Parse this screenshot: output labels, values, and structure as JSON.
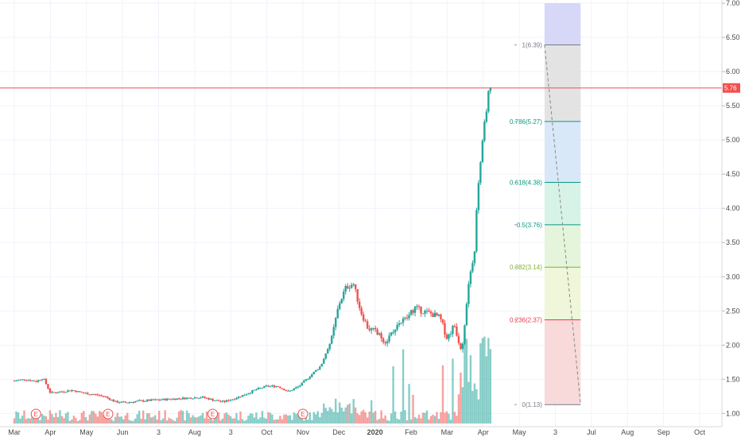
{
  "chart_data": {
    "type": "candlestick",
    "y_axis": {
      "ylim": [
        0.9,
        7.0
      ],
      "ticks": [
        "1.00",
        "1.50",
        "2.00",
        "2.50",
        "3.00",
        "3.50",
        "4.00",
        "4.50",
        "5.00",
        "5.50",
        "6.00",
        "6.50",
        "7.00"
      ],
      "position": "right"
    },
    "x_axis": {
      "ticks": [
        {
          "label": "Mar",
          "t": 0.0
        },
        {
          "label": "Apr",
          "t": 1.0
        },
        {
          "label": "May",
          "t": 2.0
        },
        {
          "label": "Jun",
          "t": 3.0
        },
        {
          "label": "3",
          "t": 4.0
        },
        {
          "label": "Aug",
          "t": 5.0
        },
        {
          "label": "3",
          "t": 6.0
        },
        {
          "label": "Oct",
          "t": 7.0
        },
        {
          "label": "Nov",
          "t": 8.0
        },
        {
          "label": "Dec",
          "t": 9.0
        },
        {
          "label": "2020",
          "t": 10.0
        },
        {
          "label": "Feb",
          "t": 11.0
        },
        {
          "label": "Mar",
          "t": 12.0
        },
        {
          "label": "Apr",
          "t": 13.0
        },
        {
          "label": "May",
          "t": 14.0
        },
        {
          "label": "3",
          "t": 15.0
        },
        {
          "label": "Jul",
          "t": 16.0
        },
        {
          "label": "Aug",
          "t": 17.0
        },
        {
          "label": "Sep",
          "t": 18.0
        },
        {
          "label": "Oct",
          "t": 19.0
        }
      ],
      "xlim": [
        0.0,
        20.5
      ]
    },
    "current_price": {
      "value": 5.76,
      "label": "5.76",
      "color": "#f0504f"
    },
    "colors": {
      "up": "#26a69a",
      "down": "#ef5350",
      "grid": "#f0f3fa"
    },
    "grid": true,
    "price_series": [
      {
        "t": 0.0,
        "v": 1.48
      },
      {
        "t": 0.3,
        "v": 1.5
      },
      {
        "t": 0.6,
        "v": 1.47
      },
      {
        "t": 0.8,
        "v": 1.52
      },
      {
        "t": 1.0,
        "v": 1.3
      },
      {
        "t": 1.3,
        "v": 1.32
      },
      {
        "t": 1.6,
        "v": 1.34
      },
      {
        "t": 1.9,
        "v": 1.3
      },
      {
        "t": 2.2,
        "v": 1.28
      },
      {
        "t": 2.5,
        "v": 1.25
      },
      {
        "t": 2.8,
        "v": 1.17
      },
      {
        "t": 3.1,
        "v": 1.16
      },
      {
        "t": 3.4,
        "v": 1.18
      },
      {
        "t": 3.7,
        "v": 1.19
      },
      {
        "t": 4.0,
        "v": 1.2
      },
      {
        "t": 4.3,
        "v": 1.21
      },
      {
        "t": 4.6,
        "v": 1.22
      },
      {
        "t": 4.9,
        "v": 1.23
      },
      {
        "t": 5.2,
        "v": 1.24
      },
      {
        "t": 5.5,
        "v": 1.2
      },
      {
        "t": 5.8,
        "v": 1.17
      },
      {
        "t": 6.1,
        "v": 1.22
      },
      {
        "t": 6.4,
        "v": 1.28
      },
      {
        "t": 6.7,
        "v": 1.35
      },
      {
        "t": 7.0,
        "v": 1.4
      },
      {
        "t": 7.3,
        "v": 1.4
      },
      {
        "t": 7.6,
        "v": 1.32
      },
      {
        "t": 7.9,
        "v": 1.4
      },
      {
        "t": 8.2,
        "v": 1.55
      },
      {
        "t": 8.5,
        "v": 1.7
      },
      {
        "t": 8.8,
        "v": 2.1
      },
      {
        "t": 9.0,
        "v": 2.6
      },
      {
        "t": 9.2,
        "v": 2.85
      },
      {
        "t": 9.4,
        "v": 2.9
      },
      {
        "t": 9.6,
        "v": 2.5
      },
      {
        "t": 9.8,
        "v": 2.25
      },
      {
        "t": 10.0,
        "v": 2.2
      },
      {
        "t": 10.3,
        "v": 2.05
      },
      {
        "t": 10.6,
        "v": 2.3
      },
      {
        "t": 10.9,
        "v": 2.4
      },
      {
        "t": 11.1,
        "v": 2.55
      },
      {
        "t": 11.3,
        "v": 2.5
      },
      {
        "t": 11.6,
        "v": 2.45
      },
      {
        "t": 11.8,
        "v": 2.4
      },
      {
        "t": 12.0,
        "v": 2.1
      },
      {
        "t": 12.2,
        "v": 2.3
      },
      {
        "t": 12.4,
        "v": 1.9
      },
      {
        "t": 12.6,
        "v": 2.9
      },
      {
        "t": 12.75,
        "v": 3.3
      },
      {
        "t": 12.85,
        "v": 4.3
      },
      {
        "t": 12.95,
        "v": 4.8
      },
      {
        "t": 13.05,
        "v": 5.3
      },
      {
        "t": 13.15,
        "v": 5.7
      },
      {
        "t": 13.25,
        "v": 5.76
      }
    ],
    "fibonacci": {
      "levels": [
        {
          "ratio": "1",
          "price": 6.39,
          "label": "1(6.39)",
          "color": "#787b86",
          "fill": "#e0e0e0"
        },
        {
          "ratio": "0.786",
          "price": 5.27,
          "label": "0.786(5.27)",
          "color": "#089981",
          "fill": "#d4e6f7"
        },
        {
          "ratio": "0.618",
          "price": 4.38,
          "label": "0.618(4.38)",
          "color": "#089981",
          "fill": "#d3f2e4"
        },
        {
          "ratio": "0.5",
          "price": 3.76,
          "label": "0.5(3.76)",
          "color": "#089981",
          "fill": "#e1f4d8"
        },
        {
          "ratio": "0.382",
          "price": 3.14,
          "label": "0.382(3.14)",
          "color": "#7fb235",
          "fill": "#edf5d5"
        },
        {
          "ratio": "0.236",
          "price": 2.37,
          "label": "0.236(2.37)",
          "color": "#f23645",
          "fill": "#f7d6d6"
        },
        {
          "ratio": "0",
          "price": 1.13,
          "label": "0(1.13)",
          "color": "#787b86",
          "fill": null
        }
      ],
      "extension": {
        "top": 7.0,
        "fill": "#d3d3f7"
      },
      "t_start": 14.7,
      "t_end": 15.7
    },
    "earnings_markers": [
      0.6,
      2.6,
      5.5,
      8.0
    ],
    "earnings_label": "E"
  }
}
